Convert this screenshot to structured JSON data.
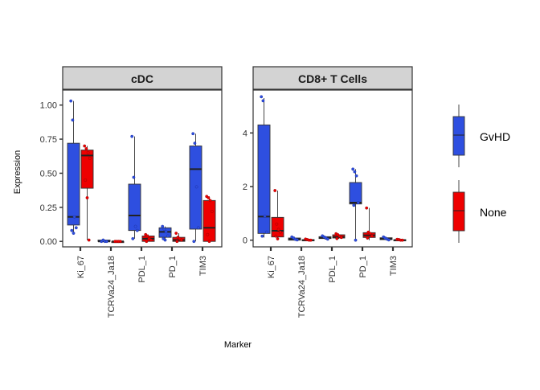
{
  "chart_data": {
    "type": "box",
    "xlabel": "Marker",
    "ylabel": "Expression",
    "categories": [
      "Ki_67",
      "TCRVa24_Ja18",
      "PDL_1",
      "PD_1",
      "TIM3"
    ],
    "legend": {
      "placement": "right",
      "entries": [
        {
          "name": "GvHD",
          "color": "#2E4FE0"
        },
        {
          "name": "None",
          "color": "#EE0000"
        }
      ]
    },
    "grid": false,
    "panels": [
      {
        "strip": "cDC",
        "ylim": [
          -0.04,
          1.11
        ],
        "yticks": [
          0.0,
          0.25,
          0.5,
          0.75,
          1.0
        ],
        "ytick_labels": [
          "0.00",
          "0.25",
          "0.50",
          "0.75",
          "1.00"
        ],
        "boxes": [
          {
            "marker": "Ki_67",
            "group": "GvHD",
            "whisker_low": 0.06,
            "q1": 0.12,
            "median": 0.18,
            "q3": 0.72,
            "whisker_high": 1.03,
            "points": [
              1.03,
              0.89,
              0.18,
              0.1,
              0.08,
              0.06
            ]
          },
          {
            "marker": "Ki_67",
            "group": "None",
            "whisker_low": 0.01,
            "q1": 0.39,
            "median": 0.63,
            "q3": 0.67,
            "whisker_high": 0.7,
            "points": [
              0.7,
              0.68,
              0.65,
              0.61,
              0.45,
              0.32,
              0.01
            ]
          },
          {
            "marker": "TCRVa24_Ja18",
            "group": "GvHD",
            "whisker_low": 0.0,
            "q1": 0.0,
            "median": 0.0,
            "q3": 0.01,
            "whisker_high": 0.01,
            "points": [
              0.0,
              0.01,
              0.0,
              0.0
            ]
          },
          {
            "marker": "TCRVa24_Ja18",
            "group": "None",
            "whisker_low": 0.0,
            "q1": 0.0,
            "median": 0.0,
            "q3": 0.0,
            "whisker_high": 0.0,
            "points": [
              0.0,
              0.0,
              0.0,
              0.0
            ]
          },
          {
            "marker": "PDL_1",
            "group": "GvHD",
            "whisker_low": 0.02,
            "q1": 0.08,
            "median": 0.19,
            "q3": 0.42,
            "whisker_high": 0.77,
            "points": [
              0.77,
              0.47,
              0.11,
              0.08,
              0.02
            ]
          },
          {
            "marker": "PDL_1",
            "group": "None",
            "whisker_low": 0.0,
            "q1": 0.0,
            "median": 0.02,
            "q3": 0.04,
            "whisker_high": 0.05,
            "points": [
              0.05,
              0.04,
              0.02,
              0.01,
              0.0
            ]
          },
          {
            "marker": "PD_1",
            "group": "GvHD",
            "whisker_low": 0.01,
            "q1": 0.03,
            "median": 0.07,
            "q3": 0.1,
            "whisker_high": 0.11,
            "points": [
              0.11,
              0.09,
              0.07,
              0.04,
              0.02,
              0.01
            ]
          },
          {
            "marker": "PD_1",
            "group": "None",
            "whisker_low": 0.0,
            "q1": 0.0,
            "median": 0.01,
            "q3": 0.03,
            "whisker_high": 0.06,
            "points": [
              0.06,
              0.03,
              0.02,
              0.01,
              0.0
            ]
          },
          {
            "marker": "TIM3",
            "group": "GvHD",
            "whisker_low": 0.0,
            "q1": 0.09,
            "median": 0.53,
            "q3": 0.7,
            "whisker_high": 0.79,
            "points": [
              0.79,
              0.72,
              0.4,
              0.1,
              0.0
            ]
          },
          {
            "marker": "TIM3",
            "group": "None",
            "whisker_low": 0.0,
            "q1": 0.0,
            "median": 0.1,
            "q3": 0.3,
            "whisker_high": 0.33,
            "points": [
              0.33,
              0.32,
              0.3,
              0.22,
              0.05,
              0.0
            ]
          }
        ]
      },
      {
        "strip": "CD8+ T Cells",
        "ylim": [
          -0.25,
          5.6
        ],
        "yticks": [
          0,
          2,
          4
        ],
        "ytick_labels": [
          "0",
          "2",
          "4"
        ],
        "boxes": [
          {
            "marker": "Ki_67",
            "group": "GvHD",
            "whisker_low": 0.1,
            "q1": 0.25,
            "median": 0.88,
            "q3": 4.3,
            "whisker_high": 5.3,
            "points": [
              5.35,
              5.2,
              0.9,
              0.3,
              0.15
            ]
          },
          {
            "marker": "Ki_67",
            "group": "None",
            "whisker_low": 0.0,
            "q1": 0.12,
            "median": 0.35,
            "q3": 0.85,
            "whisker_high": 1.85,
            "points": [
              1.85,
              0.6,
              0.4,
              0.3,
              0.15,
              0.05
            ]
          },
          {
            "marker": "TCRVa24_Ja18",
            "group": "GvHD",
            "whisker_low": 0.0,
            "q1": 0.0,
            "median": 0.04,
            "q3": 0.08,
            "whisker_high": 0.12,
            "points": [
              0.12,
              0.08,
              0.03,
              0.01
            ]
          },
          {
            "marker": "TCRVa24_Ja18",
            "group": "None",
            "whisker_low": 0.0,
            "q1": 0.0,
            "median": 0.0,
            "q3": 0.02,
            "whisker_high": 0.04,
            "points": [
              0.04,
              0.02,
              0.0,
              0.0
            ]
          },
          {
            "marker": "PDL_1",
            "group": "GvHD",
            "whisker_low": 0.02,
            "q1": 0.06,
            "median": 0.09,
            "q3": 0.13,
            "whisker_high": 0.16,
            "points": [
              0.16,
              0.12,
              0.08,
              0.04
            ]
          },
          {
            "marker": "PDL_1",
            "group": "None",
            "whisker_low": 0.05,
            "q1": 0.08,
            "median": 0.12,
            "q3": 0.2,
            "whisker_high": 0.24,
            "points": [
              0.24,
              0.2,
              0.15,
              0.1,
              0.06
            ]
          },
          {
            "marker": "PD_1",
            "group": "GvHD",
            "whisker_low": 0.0,
            "q1": 1.35,
            "median": 1.4,
            "q3": 2.15,
            "whisker_high": 2.65,
            "points": [
              2.65,
              2.55,
              2.4,
              1.4,
              1.3,
              0.0
            ]
          },
          {
            "marker": "PD_1",
            "group": "None",
            "whisker_low": 0.0,
            "q1": 0.1,
            "median": 0.18,
            "q3": 0.28,
            "whisker_high": 1.2,
            "points": [
              1.2,
              0.3,
              0.25,
              0.15,
              0.08
            ]
          },
          {
            "marker": "TIM3",
            "group": "GvHD",
            "whisker_low": 0.0,
            "q1": 0.02,
            "median": 0.05,
            "q3": 0.09,
            "whisker_high": 0.12,
            "points": [
              0.12,
              0.08,
              0.04,
              0.01
            ]
          },
          {
            "marker": "TIM3",
            "group": "None",
            "whisker_low": 0.0,
            "q1": 0.0,
            "median": 0.0,
            "q3": 0.02,
            "whisker_high": 0.03,
            "points": [
              0.03,
              0.02,
              0.0,
              0.0
            ]
          }
        ]
      }
    ]
  }
}
